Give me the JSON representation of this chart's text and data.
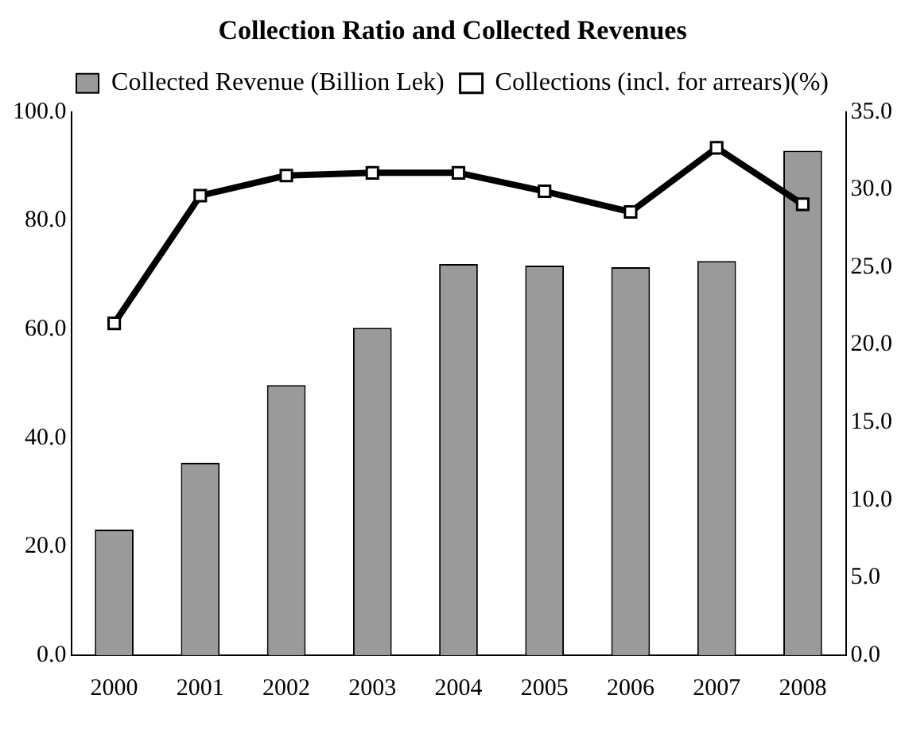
{
  "chart_data": {
    "type": "bar",
    "title": "Collection Ratio and Collected Revenues",
    "categories": [
      "2000",
      "2001",
      "2002",
      "2003",
      "2004",
      "2005",
      "2006",
      "2007",
      "2008"
    ],
    "series": [
      {
        "name": "Collected Revenue (Billion Lek)",
        "axis": "y2",
        "color": "#9a9a9a",
        "values": [
          8.1,
          12.4,
          17.4,
          21.1,
          25.2,
          25.1,
          25.0,
          25.4,
          32.5
        ]
      },
      {
        "name": "Collections (incl. for arrears)(%)",
        "type": "line",
        "color": "#000000",
        "marker": "square",
        "values": [
          61.1,
          84.6,
          88.3,
          88.8,
          88.8,
          85.4,
          81.6,
          93.4,
          83.0
        ]
      }
    ],
    "ylim": [
      0,
      100
    ],
    "yticks": [
      {
        "value": 0,
        "label": "0.0"
      },
      {
        "value": 20,
        "label": "20.0"
      },
      {
        "value": 40,
        "label": "40.0"
      },
      {
        "value": 60,
        "label": "60.0"
      },
      {
        "value": 80,
        "label": "80.0"
      },
      {
        "value": 100,
        "label": "100.0"
      }
    ],
    "y2lim": [
      0,
      35
    ],
    "y2ticks": [
      {
        "value": 0,
        "label": "0.0"
      },
      {
        "value": 5,
        "label": "5.0"
      },
      {
        "value": 10,
        "label": "10.0"
      },
      {
        "value": 15,
        "label": "15.0"
      },
      {
        "value": 20,
        "label": "20.0"
      },
      {
        "value": 25,
        "label": "25.0"
      },
      {
        "value": 30,
        "label": "30.0"
      },
      {
        "value": 35,
        "label": "35.0"
      }
    ],
    "grid": false,
    "legend": "top"
  }
}
